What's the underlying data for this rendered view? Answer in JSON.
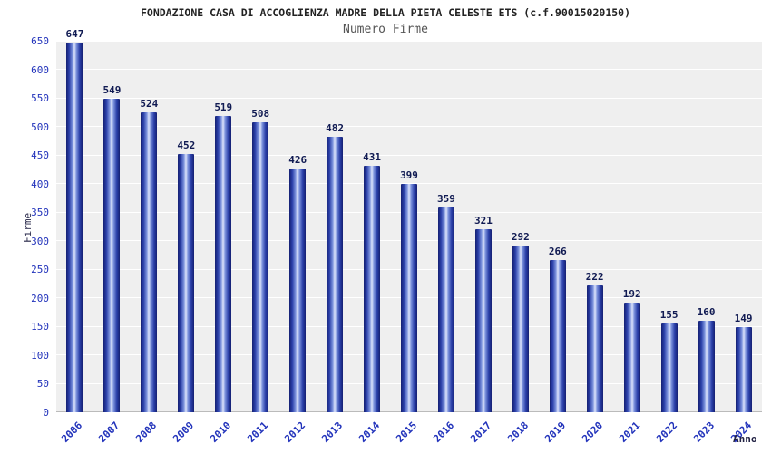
{
  "chart_data": {
    "type": "bar",
    "title": "FONDAZIONE CASA DI ACCOGLIENZA MADRE DELLA PIETA CELESTE ETS (c.f.90015020150)",
    "subtitle": "Numero Firme",
    "xlabel": "Anno",
    "ylabel": "Firme",
    "categories": [
      "2006",
      "2007",
      "2008",
      "2009",
      "2010",
      "2011",
      "2012",
      "2013",
      "2014",
      "2015",
      "2016",
      "2017",
      "2018",
      "2019",
      "2020",
      "2021",
      "2022",
      "2023",
      "2024"
    ],
    "values": [
      647,
      549,
      524,
      452,
      519,
      508,
      426,
      482,
      431,
      399,
      359,
      321,
      292,
      266,
      222,
      192,
      155,
      160,
      149
    ],
    "ylim": [
      0,
      650
    ],
    "ytick_step": 50,
    "grid": "horizontal-white-on-gray",
    "legend": "none",
    "bar_color_dark": "#141f72",
    "bar_color_light": "#dde4fb",
    "axis_label_color": "#2233bb",
    "value_label_color": "#101a52",
    "plot_bg_color": "#efefef"
  }
}
